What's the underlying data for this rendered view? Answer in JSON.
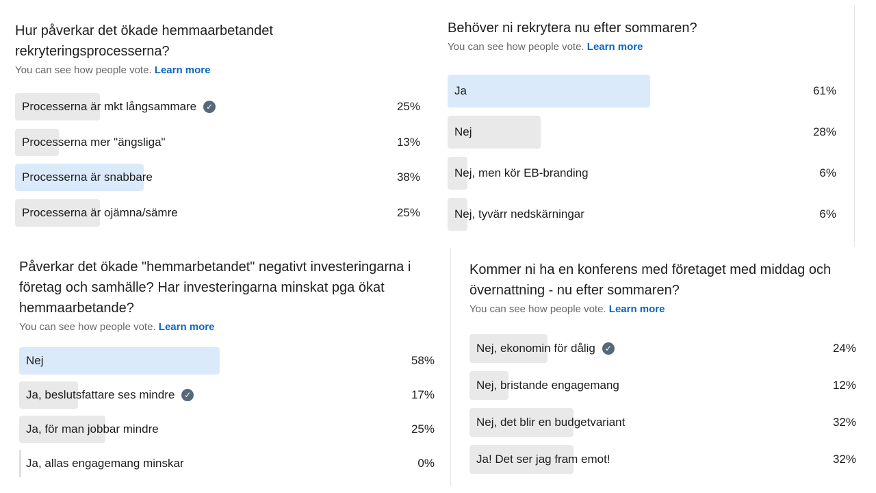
{
  "common": {
    "vote_note": "You can see how people vote.",
    "learn_more": "Learn more",
    "check_icon": "✓"
  },
  "polls": [
    {
      "question_line1": "Hur påverkar det ökade hemmaarbetandet",
      "question_line2": "rekryteringsprocesserna?",
      "options": [
        {
          "label": "Processerna är mkt långsammare",
          "pct": "25%",
          "value": 25,
          "voted": true
        },
        {
          "label": "Processerna mer \"ängsliga\"",
          "pct": "13%",
          "value": 13
        },
        {
          "label": "Processerna är snabbare",
          "pct": "38%",
          "value": 38,
          "leading": true
        },
        {
          "label": "Processerna är ojämna/sämre",
          "pct": "25%",
          "value": 25
        }
      ]
    },
    {
      "question_line1": "Behöver ni rekrytera nu efter sommaren?",
      "options": [
        {
          "label": "Ja",
          "pct": "61%",
          "value": 61,
          "leading": true
        },
        {
          "label": "Nej",
          "pct": "28%",
          "value": 28
        },
        {
          "label": "Nej, men kör EB-branding",
          "pct": "6%",
          "value": 6
        },
        {
          "label": "Nej, tyvärr nedskärningar",
          "pct": "6%",
          "value": 6
        }
      ]
    },
    {
      "question_line1": "Påverkar det ökade \"hemmarbetandet\" negativt investeringarna i",
      "question_line2": "företag och samhälle? Har investeringarna minskat pga ökat",
      "question_line3": "hemmaarbetande?",
      "options": [
        {
          "label": "Nej",
          "pct": "58%",
          "value": 58,
          "leading": true
        },
        {
          "label": "Ja, beslutsfattare ses mindre",
          "pct": "17%",
          "value": 17,
          "voted": true
        },
        {
          "label": "Ja, för man jobbar mindre",
          "pct": "25%",
          "value": 25
        },
        {
          "label": "Ja, allas engagemang minskar",
          "pct": "0%",
          "value": 0
        }
      ]
    },
    {
      "question_line1": "Kommer ni ha en konferens med företaget med middag och",
      "question_line2": "övernattning - nu efter sommaren?",
      "options": [
        {
          "label": "Nej, ekonomin för dålig",
          "pct": "24%",
          "value": 24,
          "voted": true
        },
        {
          "label": "Nej, bristande engagemang",
          "pct": "12%",
          "value": 12
        },
        {
          "label": "Nej, det blir en budgetvariant",
          "pct": "32%",
          "value": 32
        },
        {
          "label": "Ja! Det ser jag fram emot!",
          "pct": "32%",
          "value": 32
        }
      ]
    }
  ]
}
